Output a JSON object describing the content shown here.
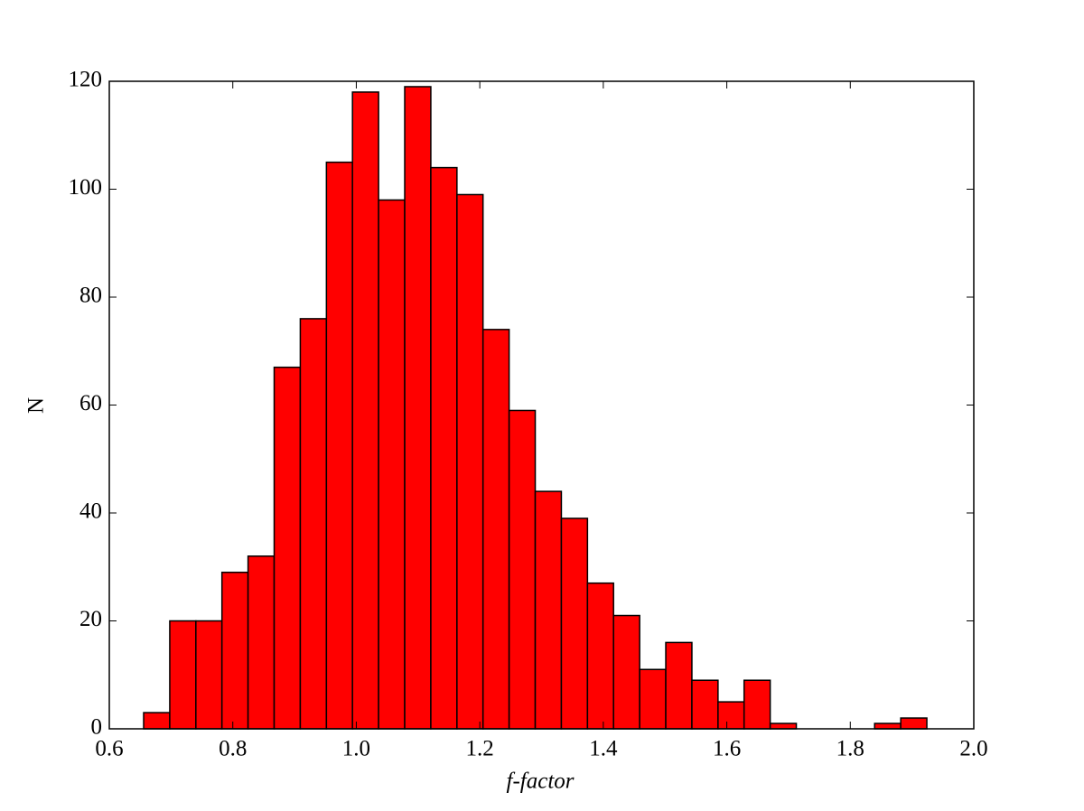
{
  "chart_data": {
    "type": "histogram",
    "xlabel": "f-factor",
    "ylabel": "N",
    "bins": [
      0.6556,
      0.6979,
      0.7402,
      0.7824,
      0.8247,
      0.867,
      0.9093,
      0.9516,
      0.9938,
      1.0361,
      1.0784,
      1.1207,
      1.163,
      1.2052,
      1.2475,
      1.2898,
      1.3321,
      1.3744,
      1.4166,
      1.4589,
      1.5012,
      1.5435,
      1.5858,
      1.628,
      1.6703,
      1.7126,
      1.7549,
      1.7972,
      1.8394,
      1.8817,
      1.924
    ],
    "values": [
      3,
      20,
      20,
      29,
      32,
      67,
      76,
      105,
      118,
      98,
      119,
      104,
      99,
      74,
      59,
      44,
      39,
      27,
      21,
      11,
      16,
      9,
      5,
      9,
      1,
      0,
      0,
      0,
      1,
      2
    ],
    "color": "#ff0000",
    "edgecolor": "#000000",
    "xlim": [
      0.6,
      2.0
    ],
    "xticks": [
      0.6,
      0.8,
      {
        "value": 1.0,
        "label": "1.0"
      },
      1.2,
      1.4,
      1.6,
      1.8,
      {
        "value": 2.0,
        "label": "2.0"
      }
    ],
    "ylim": [
      0,
      120
    ],
    "yticks": [
      0,
      20,
      40,
      60,
      80,
      100,
      120
    ]
  }
}
